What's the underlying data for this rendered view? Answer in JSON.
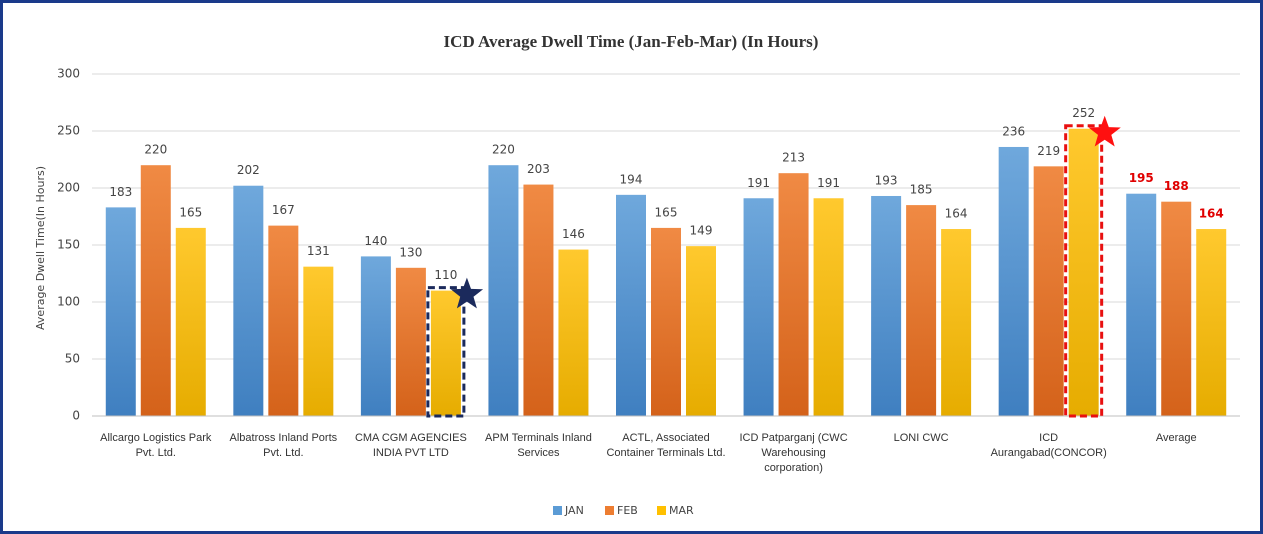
{
  "chart_data": {
    "type": "bar",
    "title": "ICD Average Dwell Time (Jan-Feb-Mar) (In Hours)",
    "y_label": "Average Dwell Time(In Hours)",
    "categories": [
      "Allcargo Logistics Park Pvt. Ltd.",
      "Albatross Inland Ports Pvt. Ltd.",
      "CMA CGM AGENCIES INDIA PVT LTD",
      "APM Terminals Inland Services",
      "ACTL, Associated Container Terminals Ltd.",
      "ICD Patparganj (CWC Warehousing corporation)",
      "LONI CWC",
      "ICD Aurangabad(CONCOR)",
      "Average"
    ],
    "series": [
      {
        "name": "JAN",
        "color": "#5b9bd5",
        "values": [
          183,
          202,
          140,
          220,
          194,
          191,
          193,
          236,
          195
        ]
      },
      {
        "name": "FEB",
        "color": "#ed7d31",
        "values": [
          220,
          167,
          130,
          203,
          165,
          213,
          185,
          219,
          188
        ]
      },
      {
        "name": "MAR",
        "color": "#ffc000",
        "values": [
          165,
          131,
          110,
          146,
          149,
          191,
          164,
          252,
          164
        ]
      }
    ],
    "ylim": [
      0,
      300
    ],
    "yticks": [
      0,
      50,
      100,
      150,
      200,
      250,
      300
    ],
    "grid": true,
    "legend": "bottom",
    "highlight_label_color": "#e00000"
  }
}
